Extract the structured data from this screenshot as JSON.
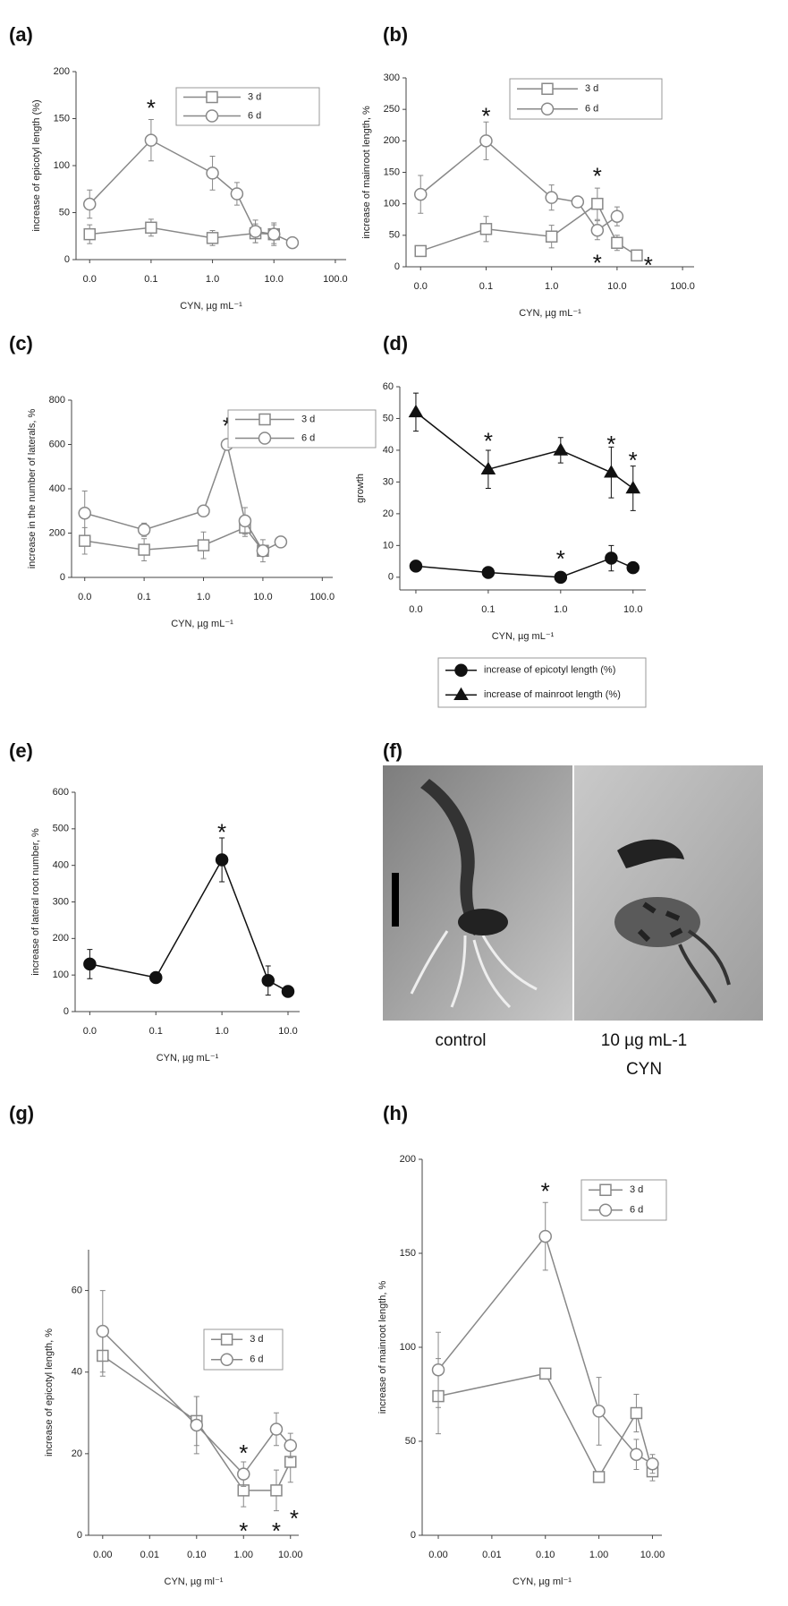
{
  "chart_data": [
    {
      "type": "line",
      "panel": "(a)",
      "xlabel": "CYN, µg mL⁻¹",
      "ylabel": "increase of epicotyl length (%)",
      "log_x": true,
      "xlim": [
        0.006,
        150
      ],
      "xticks": [
        {
          "value": 0.01,
          "label": "0.0"
        },
        0.1,
        {
          "value": 1,
          "label": "1.0"
        },
        {
          "value": 10,
          "label": "10.0"
        },
        {
          "value": 100,
          "label": "100.0"
        }
      ],
      "ylim": [
        0,
        200
      ],
      "yticks": [
        0,
        50,
        100,
        150,
        200
      ],
      "legend": "upper right",
      "series": [
        {
          "name": "3 d",
          "color": "#888888",
          "marker": "square",
          "fill": "#ffffff",
          "x": [
            0.01,
            0.1,
            1,
            5,
            10
          ],
          "values": [
            27,
            34,
            23,
            28,
            27
          ],
          "errors": [
            10,
            9,
            8,
            10,
            10
          ]
        },
        {
          "name": "6 d",
          "color": "#888888",
          "marker": "circle",
          "fill": "#ffffff",
          "x": [
            0.01,
            0.1,
            1,
            2.5,
            5,
            10,
            20
          ],
          "values": [
            59,
            127,
            92,
            70,
            30,
            27,
            18
          ],
          "errors": [
            15,
            22,
            18,
            12,
            12,
            12,
            null
          ]
        }
      ],
      "annotations": [
        {
          "text": "*",
          "x": 0.1,
          "y": 165
        }
      ]
    },
    {
      "type": "line",
      "panel": "(b)",
      "xlabel": "CYN, µg mL⁻¹",
      "ylabel": "increase of mainroot length, %",
      "log_x": true,
      "xlim": [
        0.006,
        150
      ],
      "xticks": [
        {
          "value": 0.01,
          "label": "0.0"
        },
        0.1,
        {
          "value": 1,
          "label": "1.0"
        },
        {
          "value": 10,
          "label": "10.0"
        },
        {
          "value": 100,
          "label": "100.0"
        }
      ],
      "ylim": [
        0,
        300
      ],
      "yticks": [
        0,
        50,
        100,
        150,
        200,
        250,
        300
      ],
      "legend": "upper right",
      "series": [
        {
          "name": "3 d",
          "color": "#888888",
          "marker": "square",
          "fill": "#ffffff",
          "x": [
            0.01,
            0.1,
            1,
            5,
            10,
            20
          ],
          "values": [
            25,
            60,
            48,
            100,
            38,
            18
          ],
          "errors": [
            8,
            20,
            18,
            25,
            12,
            8
          ]
        },
        {
          "name": "6 d",
          "color": "#888888",
          "marker": "circle",
          "fill": "#ffffff",
          "x": [
            0.01,
            0.1,
            1,
            2.5,
            5,
            10
          ],
          "values": [
            115,
            200,
            110,
            103,
            58,
            80
          ],
          "errors": [
            30,
            30,
            20,
            8,
            15,
            15
          ]
        }
      ],
      "annotations": [
        {
          "text": "*",
          "x": 0.1,
          "y": 245
        },
        {
          "text": "*",
          "x": 5,
          "y": 150
        },
        {
          "text": "*",
          "x": 5,
          "y": 12
        },
        {
          "text": "*",
          "x": 30,
          "y": 8
        }
      ]
    },
    {
      "type": "line",
      "panel": "(c)",
      "xlabel": "CYN, µg mL⁻¹",
      "ylabel": "increase in the number of laterals, %",
      "log_x": true,
      "xlim": [
        0.006,
        150
      ],
      "xticks": [
        {
          "value": 0.01,
          "label": "0.0"
        },
        0.1,
        {
          "value": 1,
          "label": "1.0"
        },
        {
          "value": 10,
          "label": "10.0"
        },
        {
          "value": 100,
          "label": "100.0"
        }
      ],
      "ylim": [
        0,
        800
      ],
      "yticks": [
        0,
        200,
        400,
        600,
        800
      ],
      "legend": "upper right",
      "series": [
        {
          "name": "3 d",
          "color": "#888888",
          "marker": "square",
          "fill": "#ffffff",
          "x": [
            0.01,
            0.1,
            1,
            5,
            10
          ],
          "values": [
            165,
            125,
            145,
            225,
            120
          ],
          "errors": [
            60,
            50,
            60,
            40,
            null
          ]
        },
        {
          "name": "6 d",
          "color": "#888888",
          "marker": "circle",
          "fill": "#ffffff",
          "x": [
            0.01,
            0.1,
            1,
            2.5,
            5,
            10,
            20
          ],
          "values": [
            290,
            215,
            300,
            600,
            255,
            120,
            160
          ],
          "errors": [
            100,
            30,
            20,
            null,
            60,
            50,
            null
          ]
        }
      ],
      "annotations": [
        {
          "text": "*",
          "x": 2.5,
          "y": 700
        }
      ]
    },
    {
      "type": "line",
      "panel": "(d)",
      "xlabel": "CYN, µg mL⁻¹",
      "ylabel": "growth",
      "log_x": true,
      "xlim": [
        0.006,
        15
      ],
      "xticks": [
        {
          "value": 0.01,
          "label": "0.0"
        },
        0.1,
        {
          "value": 1,
          "label": "1.0"
        },
        {
          "value": 10,
          "label": "10.0"
        }
      ],
      "ylim": [
        -4,
        60
      ],
      "yticks": [
        0,
        10,
        20,
        30,
        40,
        50,
        60
      ],
      "legend": "below",
      "series": [
        {
          "name": "increase of epicotyl length (%)",
          "color": "#111111",
          "marker": "circle",
          "fill": "#111111",
          "x": [
            0.01,
            0.1,
            1,
            5,
            10
          ],
          "values": [
            3.5,
            1.5,
            0,
            6,
            3
          ],
          "errors": [
            null,
            null,
            null,
            4,
            null
          ]
        },
        {
          "name": "increase of mainroot length (%)",
          "color": "#111111",
          "marker": "triangle",
          "fill": "#111111",
          "x": [
            0.01,
            0.1,
            1,
            5,
            10
          ],
          "values": [
            52,
            34,
            40,
            33,
            28
          ],
          "errors": [
            6,
            6,
            4,
            8,
            7
          ]
        }
      ],
      "annotations": [
        {
          "text": "*",
          "x": 0.1,
          "y": 44
        },
        {
          "text": "*",
          "x": 1,
          "y": 7
        },
        {
          "text": "*",
          "x": 5,
          "y": 43
        },
        {
          "text": "*",
          "x": 10,
          "y": 38
        }
      ]
    },
    {
      "type": "line",
      "panel": "(e)",
      "xlabel": "CYN, µg mL⁻¹",
      "ylabel": "increase of lateral root number, %",
      "log_x": true,
      "xlim": [
        0.006,
        15
      ],
      "xticks": [
        {
          "value": 0.01,
          "label": "0.0"
        },
        0.1,
        {
          "value": 1,
          "label": "1.0"
        },
        {
          "value": 10,
          "label": "10.0"
        }
      ],
      "ylim": [
        0,
        600
      ],
      "yticks": [
        0,
        100,
        200,
        300,
        400,
        500,
        600
      ],
      "series": [
        {
          "color": "#111111",
          "marker": "circle",
          "fill": "#111111",
          "x": [
            0.01,
            0.1,
            1,
            5,
            10
          ],
          "values": [
            130,
            93,
            415,
            85,
            55
          ],
          "errors": [
            40,
            null,
            60,
            40,
            null
          ]
        }
      ],
      "annotations": [
        {
          "text": "*",
          "x": 1,
          "y": 500
        }
      ]
    },
    {
      "type": "line",
      "panel": "(g)",
      "xlabel": "CYN, µg ml⁻¹",
      "ylabel": "increase of epicotyl length, %",
      "log_x": true,
      "xlim": [
        0.0005,
        15
      ],
      "xticks": [
        {
          "value": 0.001,
          "label": "0.00"
        },
        0.01,
        {
          "value": 0.1,
          "label": "0.10"
        },
        {
          "value": 1,
          "label": "1.00"
        },
        {
          "value": 10,
          "label": "10.00"
        }
      ],
      "ylim": [
        0,
        70
      ],
      "yticks": [
        0,
        20,
        40,
        60
      ],
      "legend": "center right",
      "series": [
        {
          "name": "3 d",
          "color": "#888888",
          "marker": "square",
          "fill": "#ffffff",
          "x": [
            0.001,
            0.1,
            1,
            5,
            10
          ],
          "values": [
            44,
            28,
            11,
            11,
            18
          ],
          "errors": [
            5,
            6,
            4,
            5,
            5
          ]
        },
        {
          "name": "6 d",
          "color": "#888888",
          "marker": "circle",
          "fill": "#ffffff",
          "x": [
            0.001,
            0.1,
            1,
            5,
            10
          ],
          "values": [
            50,
            27,
            15,
            26,
            22
          ],
          "errors": [
            10,
            7,
            3,
            4,
            3
          ]
        }
      ],
      "annotations": [
        {
          "text": "*",
          "x": 1,
          "y": 21
        },
        {
          "text": "*",
          "x": 1,
          "y": 2
        },
        {
          "text": "*",
          "x": 5,
          "y": 2
        },
        {
          "text": "*",
          "x": 12,
          "y": 5
        }
      ]
    },
    {
      "type": "line",
      "panel": "(h)",
      "xlabel": "CYN, µg ml⁻¹",
      "ylabel": "increase of mainroot length, %",
      "log_x": true,
      "xlim": [
        0.0005,
        15
      ],
      "xticks": [
        {
          "value": 0.001,
          "label": "0.00"
        },
        0.01,
        {
          "value": 0.1,
          "label": "0.10"
        },
        {
          "value": 1,
          "label": "1.00"
        },
        {
          "value": 10,
          "label": "10.00"
        }
      ],
      "ylim": [
        0,
        200
      ],
      "yticks": [
        0,
        50,
        100,
        150,
        200
      ],
      "legend": "upper right",
      "series": [
        {
          "name": "3 d",
          "color": "#888888",
          "marker": "square",
          "fill": "#ffffff",
          "x": [
            0.001,
            0.1,
            1,
            5,
            10
          ],
          "values": [
            74,
            86,
            31,
            65,
            34
          ],
          "errors": [
            20,
            null,
            null,
            10,
            5
          ]
        },
        {
          "name": "6 d",
          "color": "#888888",
          "marker": "circle",
          "fill": "#ffffff",
          "x": [
            0.001,
            0.1,
            1,
            5,
            10
          ],
          "values": [
            88,
            159,
            66,
            43,
            38
          ],
          "errors": [
            20,
            18,
            18,
            8,
            5
          ]
        }
      ],
      "annotations": [
        {
          "text": "*",
          "x": 0.1,
          "y": 185
        }
      ]
    }
  ],
  "photo": {
    "panel": "(f)",
    "captions": [
      "control",
      "10 µg mL-1",
      "CYN"
    ]
  }
}
